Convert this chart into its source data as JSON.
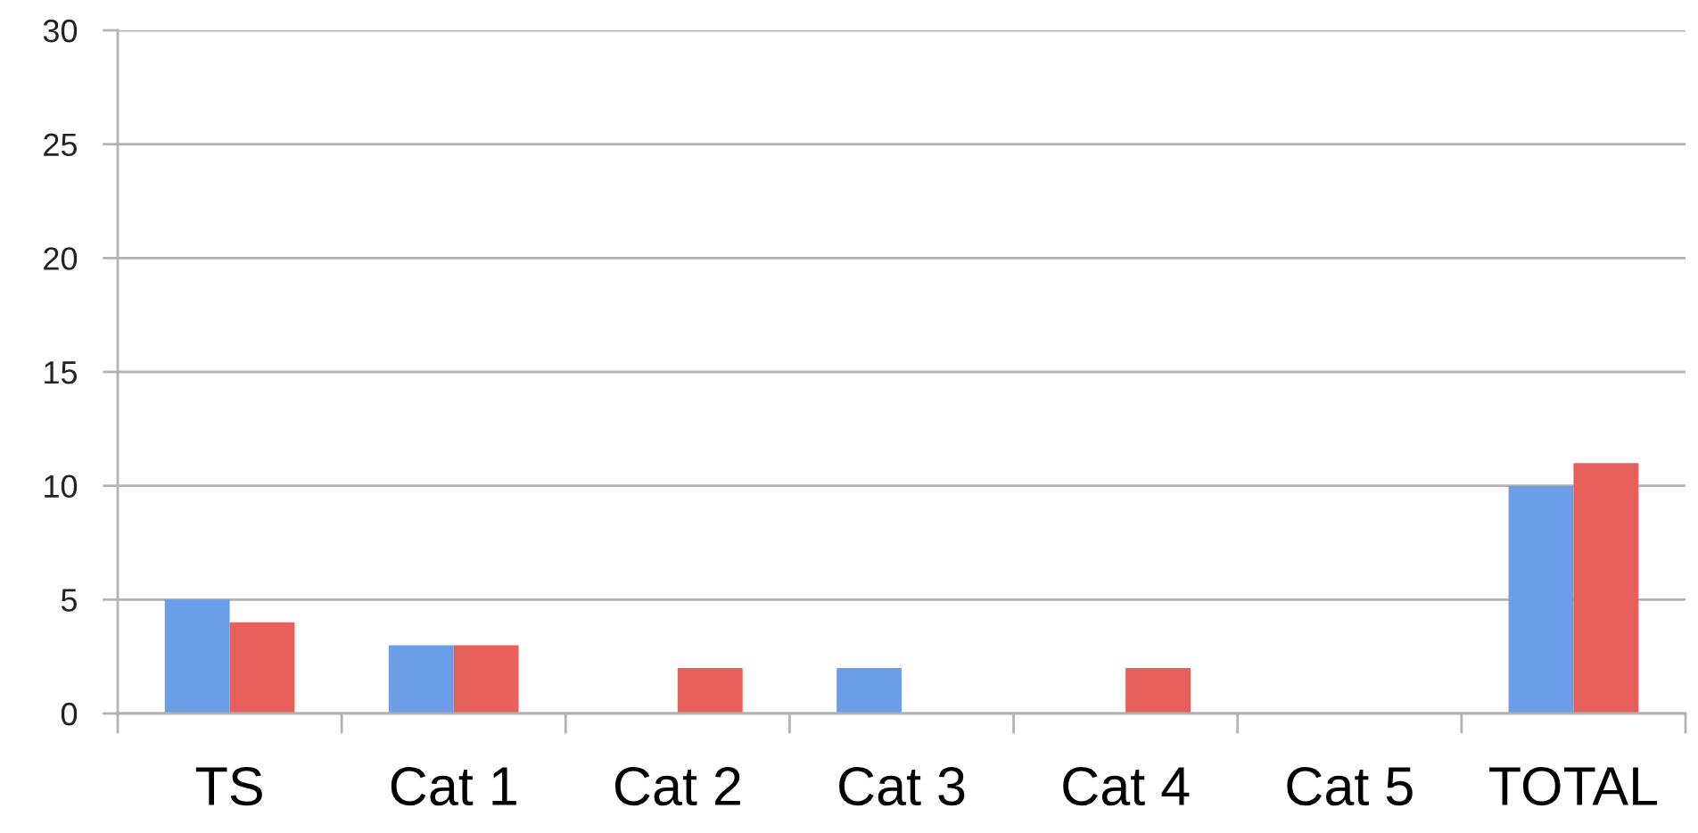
{
  "chart_data": {
    "type": "bar",
    "categories": [
      "TS",
      "Cat 1",
      "Cat 2",
      "Cat 3",
      "Cat 4",
      "Cat 5",
      "TOTAL"
    ],
    "series": [
      {
        "color": "#6b9ee6",
        "values": [
          5,
          3,
          0,
          2,
          0,
          0,
          10
        ]
      },
      {
        "color": "#e5605a",
        "values": [
          4,
          3,
          2,
          0,
          2,
          0,
          11
        ]
      }
    ],
    "ylim": [
      0,
      30
    ],
    "yticks": [
      0,
      5,
      10,
      15,
      20,
      25,
      30
    ],
    "grid": "y"
  }
}
